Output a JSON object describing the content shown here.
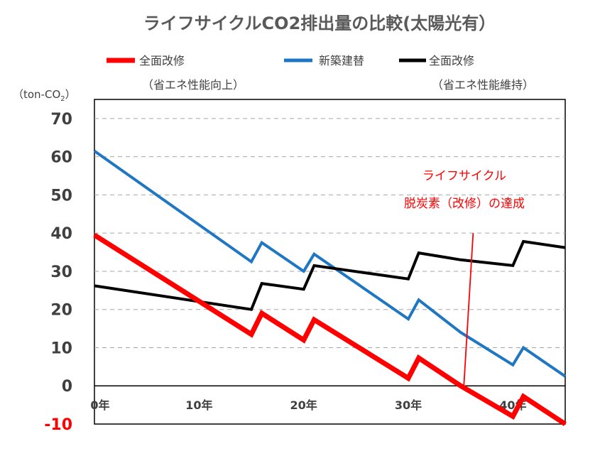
{
  "chart_data": {
    "type": "line",
    "title": "ライフサイクルCO2排出量の比較(太陽光有）",
    "ylabel_unit_prefix": "（ton-CO",
    "ylabel_unit_sub": "2",
    "ylabel_unit_suffix": "）",
    "ylim": [
      -10,
      75
    ],
    "xlim": [
      0,
      45
    ],
    "yticks": [
      70,
      60,
      50,
      40,
      30,
      20,
      10,
      0,
      -10
    ],
    "ytick_labels": [
      "70",
      "60",
      "50",
      "40",
      "30",
      "20",
      "10",
      "0",
      "-10"
    ],
    "xticks": [
      0,
      10,
      20,
      30,
      40
    ],
    "xtick_labels": [
      "0年",
      "10年",
      "20年",
      "30年",
      "40年"
    ],
    "gridlines": true,
    "series": [
      {
        "name": "全面改修",
        "name_sub": "（省エネ性能向上）",
        "color": "#ff0000",
        "x": [
          0,
          15,
          16,
          20,
          21,
          30,
          31,
          35,
          40,
          41,
          45
        ],
        "values": [
          39.5,
          13.5,
          19,
          12,
          17.3,
          2,
          7.3,
          0,
          -8,
          -2.8,
          -10
        ]
      },
      {
        "name": "新築建替",
        "name_sub": "",
        "color": "#1f77c4",
        "x": [
          0,
          15,
          16,
          20,
          21,
          30,
          31,
          35,
          40,
          41,
          45
        ],
        "values": [
          61.5,
          32.5,
          37.5,
          30,
          34.5,
          17.5,
          22.5,
          14,
          5.5,
          10,
          2.5
        ]
      },
      {
        "name": "全面改修",
        "name_sub": "（省エネ性能維持）",
        "color": "#000000",
        "x": [
          0,
          15,
          16,
          20,
          21,
          30,
          31,
          35,
          40,
          41,
          45
        ],
        "values": [
          26.2,
          20.0,
          26.8,
          25.3,
          31.5,
          28.0,
          34.8,
          33.0,
          31.5,
          37.8,
          36.2
        ]
      }
    ],
    "annotation_line": {
      "color": "#ff0000",
      "x": [
        35.3,
        36.2
      ],
      "values": [
        -0.5,
        40
      ]
    },
    "annotations": [
      "ライフサイクル",
      "脱炭素（改修）の達成"
    ]
  }
}
